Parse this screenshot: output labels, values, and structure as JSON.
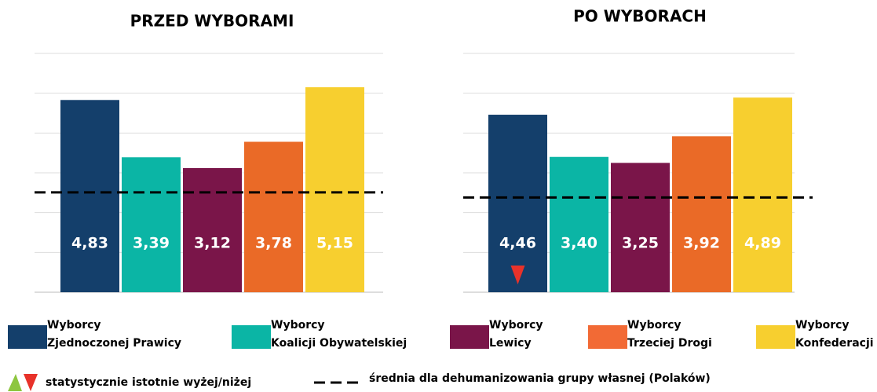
{
  "chart_data": [
    {
      "type": "bar",
      "title": "PRZED WYBORAMI",
      "values": [
        4.83,
        3.39,
        3.12,
        3.78,
        5.15
      ],
      "value_labels": [
        "4,83",
        "3,39",
        "3,12",
        "3,78",
        "5,15"
      ],
      "colors": [
        "#143f6b",
        "#0bb5a5",
        "#7a1549",
        "#ea6a27",
        "#f7cf2f"
      ],
      "significantly_lower": [
        false,
        false,
        false,
        false,
        false
      ],
      "mean": 2.51,
      "ylim": [
        0,
        6
      ],
      "yticks": [
        0,
        1,
        2,
        3,
        4,
        5,
        6
      ],
      "grid": true
    },
    {
      "type": "bar",
      "title": "PO WYBORACH",
      "values": [
        4.46,
        3.4,
        3.25,
        3.92,
        4.89
      ],
      "value_labels": [
        "4,46",
        "3,40",
        "3,25",
        "3,92",
        "4,89"
      ],
      "colors": [
        "#143f6b",
        "#0bb5a5",
        "#7a1549",
        "#ea6a27",
        "#f7cf2f"
      ],
      "significantly_lower": [
        true,
        false,
        false,
        false,
        false
      ],
      "mean": 2.38,
      "ylim": [
        0,
        6
      ],
      "yticks": [
        0,
        1,
        2,
        3,
        4,
        5,
        6
      ],
      "grid": true
    }
  ],
  "legend": {
    "items": [
      {
        "name": [
          "Wyborcy",
          "Zjednoczonej Prawicy"
        ],
        "color": "#143f6b"
      },
      {
        "name": [
          "Wyborcy",
          "Koalicji Obywatelskiej"
        ],
        "color": "#0bb5a5"
      },
      {
        "name": [
          "Wyborcy",
          "Lewicy"
        ],
        "color": "#7a1549"
      },
      {
        "name": [
          "Wyborcy",
          "Trzeciej Drogi"
        ],
        "color": "#f26a35"
      },
      {
        "name": [
          "Wyborcy",
          "Konfederacji"
        ],
        "color": "#f7cf2f"
      }
    ],
    "significance": "statystycznie istotnie wyżej/niżej",
    "mean_line": "średnia dla dehumanizowania grupy własnej (Polaków)"
  }
}
